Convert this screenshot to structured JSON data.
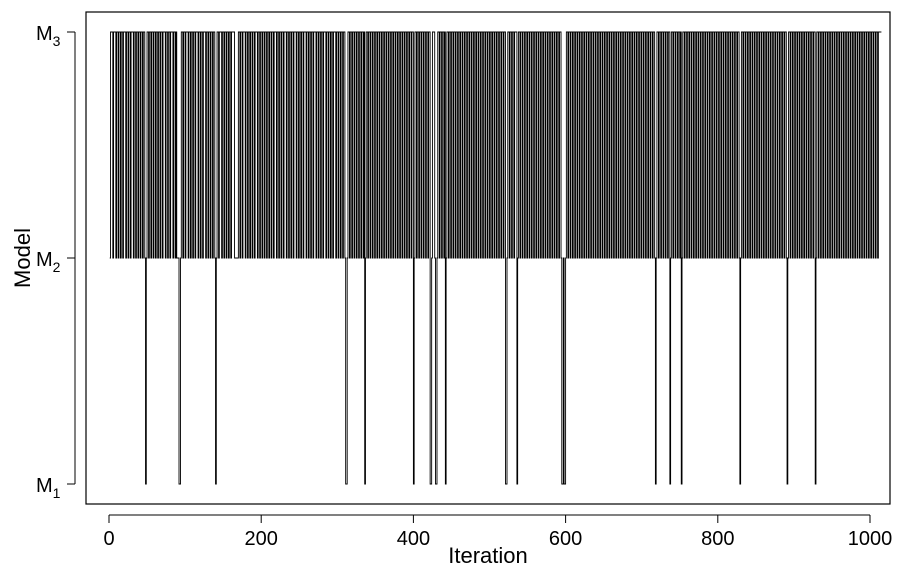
{
  "chart_data": {
    "type": "line",
    "xlabel": "Iteration",
    "ylabel": "Model",
    "xlim": [
      0,
      1000
    ],
    "ylim": [
      1,
      3
    ],
    "x_ticks": [
      0,
      200,
      400,
      600,
      800,
      1000
    ],
    "x_tick_labels": [
      "0",
      "200",
      "400",
      "600",
      "800",
      "1000"
    ],
    "y_ticks": [
      1,
      2,
      3
    ],
    "y_tick_labels": [
      {
        "base": "M",
        "sub": "1"
      },
      {
        "base": "M",
        "sub": "2"
      },
      {
        "base": "M",
        "sub": "3"
      }
    ],
    "grid": false,
    "line_color": "#000000",
    "series": [
      {
        "x_start": 1,
        "step": 1,
        "values": [
          2,
          3,
          3,
          3,
          2,
          3,
          3,
          3,
          2,
          3,
          3,
          2,
          3,
          3,
          2,
          3,
          3,
          2,
          3,
          3,
          3,
          2,
          3,
          3,
          2,
          3,
          3,
          2,
          3,
          3,
          3,
          2,
          3,
          3,
          2,
          3,
          3,
          2,
          3,
          3,
          2,
          3,
          3,
          2,
          3,
          3,
          2,
          1,
          2,
          3,
          3,
          2,
          3,
          3,
          2,
          3,
          3,
          2,
          3,
          3,
          2,
          3,
          3,
          2,
          3,
          3,
          2,
          3,
          3,
          2,
          3,
          3,
          3,
          2,
          3,
          3,
          2,
          3,
          3,
          2,
          3,
          3,
          3,
          2,
          3,
          3,
          2,
          3,
          2,
          2,
          2,
          1,
          1,
          2,
          3,
          3,
          2,
          3,
          3,
          2,
          3,
          3,
          3,
          2,
          3,
          3,
          2,
          3,
          3,
          2,
          3,
          3,
          2,
          3,
          3,
          3,
          2,
          3,
          3,
          2,
          3,
          3,
          2,
          3,
          3,
          3,
          2,
          3,
          3,
          2,
          3,
          3,
          2,
          3,
          3,
          2,
          3,
          3,
          2,
          1,
          2,
          3,
          3,
          2,
          3,
          3,
          3,
          2,
          3,
          3,
          2,
          3,
          3,
          2,
          3,
          3,
          2,
          3,
          3,
          2,
          3,
          3,
          3,
          3,
          2,
          2,
          2,
          2,
          2,
          3,
          3,
          2,
          3,
          3,
          2,
          3,
          3,
          3,
          2,
          3,
          3,
          2,
          3,
          3,
          2,
          3,
          3,
          2,
          3,
          3,
          2,
          3,
          3,
          3,
          2,
          3,
          3,
          2,
          3,
          3,
          2,
          3,
          3,
          2,
          3,
          3,
          2,
          3,
          3,
          2,
          3,
          3,
          2,
          3,
          3,
          2,
          3,
          3,
          3,
          2,
          3,
          3,
          2,
          3,
          3,
          2,
          3,
          3,
          2,
          3,
          3,
          3,
          2,
          3,
          3,
          2,
          3,
          3,
          2,
          3,
          3,
          2,
          3,
          3,
          3,
          2,
          3,
          3,
          2,
          3,
          3,
          2,
          3,
          3,
          2,
          3,
          3,
          3,
          2,
          3,
          3,
          2,
          3,
          3,
          2,
          3,
          3,
          2,
          3,
          3,
          3,
          2,
          3,
          3,
          2,
          3,
          3,
          2,
          3,
          3,
          2,
          3,
          3,
          3,
          2,
          3,
          3,
          2,
          3,
          3,
          2,
          3,
          3,
          2,
          3,
          3,
          3,
          2,
          3,
          3,
          2,
          3,
          3,
          2,
          3,
          3,
          2,
          3,
          3,
          2,
          1,
          1,
          2,
          3,
          3,
          2,
          3,
          3,
          2,
          3,
          3,
          2,
          3,
          3,
          2,
          3,
          3,
          2,
          3,
          3,
          2,
          3,
          3,
          2,
          3,
          1,
          2,
          3,
          3,
          2,
          3,
          3,
          2,
          3,
          3,
          2,
          3,
          3,
          2,
          3,
          3,
          2,
          3,
          3,
          2,
          3,
          3,
          2,
          3,
          3,
          2,
          3,
          3,
          2,
          3,
          3,
          2,
          3,
          3,
          2,
          3,
          3,
          2,
          3,
          3,
          2,
          3,
          3,
          2,
          3,
          3,
          2,
          3,
          3,
          2,
          3,
          3,
          2,
          3,
          3,
          2,
          3,
          3,
          2,
          3,
          3,
          2,
          3,
          3,
          1,
          2,
          3,
          3,
          2,
          3,
          3,
          2,
          3,
          3,
          2,
          3,
          3,
          2,
          3,
          3,
          2,
          3,
          3,
          2,
          3,
          3,
          1,
          1,
          2,
          3,
          3,
          3,
          2,
          1,
          1,
          2,
          3,
          3,
          2,
          3,
          3,
          2,
          3,
          3,
          2,
          3,
          1,
          2,
          3,
          3,
          2,
          3,
          3,
          2,
          3,
          3,
          2,
          3,
          3,
          2,
          3,
          3,
          2,
          3,
          3,
          2,
          3,
          3,
          2,
          3,
          3,
          2,
          3,
          3,
          2,
          3,
          3,
          2,
          3,
          3,
          2,
          3,
          3,
          2,
          3,
          3,
          2,
          3,
          3,
          2,
          3,
          3,
          2,
          3,
          3,
          2,
          3,
          3,
          2,
          3,
          3,
          2,
          3,
          3,
          2,
          3,
          3,
          2,
          3,
          3,
          2,
          3,
          3,
          2,
          3,
          3,
          2,
          3,
          3,
          2,
          3,
          3,
          2,
          3,
          3,
          1,
          1,
          2,
          3,
          3,
          2,
          3,
          3,
          2,
          3,
          3,
          2,
          3,
          3,
          3,
          1,
          2,
          3,
          3,
          2,
          3,
          3,
          2,
          3,
          3,
          2,
          3,
          3,
          2,
          3,
          3,
          2,
          3,
          3,
          2,
          3,
          3,
          2,
          3,
          3,
          2,
          3,
          3,
          2,
          3,
          3,
          2,
          3,
          3,
          2,
          3,
          3,
          2,
          3,
          3,
          2,
          3,
          3,
          2,
          3,
          3,
          2,
          3,
          3,
          2,
          3,
          3,
          2,
          3,
          3,
          2,
          3,
          3,
          2,
          1,
          1,
          2,
          1,
          1,
          2,
          3,
          3,
          2,
          3,
          3,
          2,
          3,
          3,
          2,
          3,
          3,
          2,
          3,
          3,
          2,
          3,
          3,
          2,
          3,
          3,
          2,
          3,
          3,
          2,
          3,
          3,
          2,
          3,
          3,
          2,
          3,
          3,
          2,
          3,
          3,
          2,
          3,
          3,
          2,
          3,
          3,
          2,
          3,
          3,
          2,
          3,
          3,
          2,
          3,
          3,
          2,
          3,
          3,
          2,
          3,
          3,
          2,
          3,
          3,
          2,
          3,
          3,
          2,
          3,
          3,
          2,
          3,
          3,
          2,
          3,
          3,
          2,
          3,
          3,
          2,
          3,
          3,
          2,
          3,
          3,
          2,
          3,
          3,
          2,
          3,
          3,
          2,
          3,
          3,
          2,
          3,
          3,
          2,
          3,
          3,
          2,
          3,
          3,
          2,
          3,
          3,
          2,
          3,
          3,
          2,
          3,
          3,
          2,
          3,
          3,
          2,
          3,
          3,
          2,
          3,
          3,
          2,
          1,
          2,
          3,
          3,
          2,
          3,
          3,
          2,
          3,
          3,
          2,
          3,
          3,
          2,
          3,
          3,
          2,
          3,
          3,
          1,
          2,
          3,
          3,
          2,
          3,
          3,
          2,
          3,
          3,
          2,
          3,
          3,
          2,
          3,
          1,
          2,
          3,
          3,
          2,
          3,
          3,
          2,
          3,
          3,
          2,
          3,
          3,
          2,
          3,
          3,
          2,
          3,
          3,
          2,
          3,
          3,
          2,
          3,
          3,
          2,
          3,
          3,
          2,
          3,
          3,
          2,
          3,
          3,
          2,
          3,
          3,
          2,
          3,
          3,
          2,
          3,
          3,
          2,
          3,
          3,
          2,
          3,
          3,
          2,
          3,
          3,
          2,
          3,
          3,
          2,
          3,
          3,
          2,
          3,
          3,
          2,
          3,
          3,
          2,
          3,
          3,
          2,
          3,
          3,
          2,
          3,
          3,
          2,
          3,
          3,
          2,
          1,
          2,
          3,
          3,
          2,
          3,
          3,
          2,
          3,
          3,
          2,
          3,
          3,
          2,
          3,
          3,
          2,
          3,
          3,
          2,
          3,
          3,
          2,
          3,
          3,
          2,
          3,
          3,
          2,
          3,
          3,
          2,
          3,
          3,
          2,
          3,
          3,
          2,
          3,
          3,
          2,
          3,
          3,
          2,
          3,
          3,
          2,
          3,
          3,
          2,
          3,
          3,
          2,
          3,
          3,
          2,
          3,
          3,
          2,
          3,
          3,
          2,
          1,
          2,
          3,
          3,
          2,
          3,
          3,
          2,
          3,
          3,
          2,
          3,
          3,
          2,
          3,
          3,
          2,
          3,
          3,
          2,
          3,
          3,
          2,
          3,
          3,
          2,
          3,
          3,
          2,
          3,
          3,
          2,
          3,
          3,
          2,
          3,
          3,
          1,
          2,
          3,
          3,
          2,
          3,
          3,
          2,
          3,
          3,
          2,
          3,
          3,
          2,
          3,
          3,
          2,
          3,
          3,
          2,
          3,
          3,
          2,
          3,
          3,
          2,
          3,
          3,
          2,
          3,
          3,
          2,
          3,
          3,
          2,
          3,
          3,
          2,
          3,
          3,
          2,
          3,
          3,
          2,
          3,
          3,
          2,
          3,
          3,
          2,
          3,
          3,
          2,
          3,
          3,
          2,
          3,
          3,
          2,
          3,
          3,
          2,
          3,
          3,
          2,
          3,
          3,
          2,
          3,
          3,
          2,
          3,
          3,
          2,
          3,
          3,
          2,
          3,
          3,
          2,
          3,
          3,
          2,
          3,
          3,
          3,
          3
        ]
      }
    ]
  }
}
